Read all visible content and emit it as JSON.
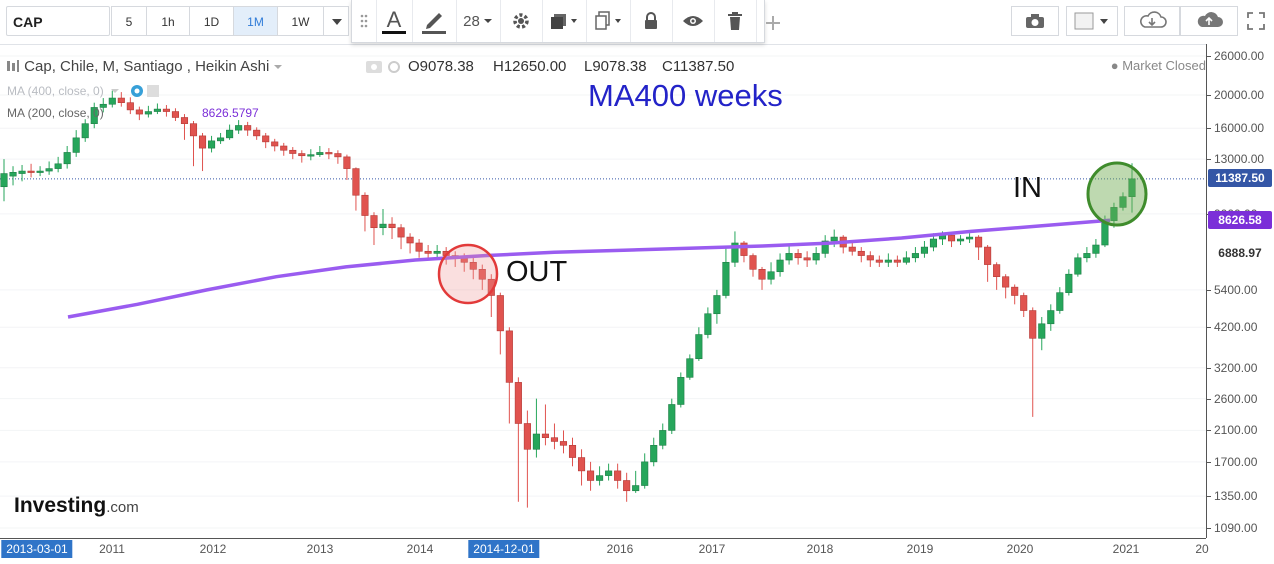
{
  "toolbar": {
    "symbol": "CAP",
    "timeframes": [
      "5",
      "1h",
      "1D",
      "1M",
      "1W"
    ],
    "active_timeframe": "1M",
    "font_size": "28"
  },
  "legend": {
    "title": "Cap, Chile, M, Santiago , Heikin Ashi",
    "open": "O9078.38",
    "high": "H12650.00",
    "low": "L9078.38",
    "close": "C11387.50",
    "ma400": "MA (400, close, 0)",
    "ma200": "MA (200, close, 0)",
    "ma200_value": "8626.5797",
    "market_status": "Market Closed"
  },
  "annotations": {
    "ma_title": "MA400 weeks",
    "out_label": "OUT",
    "in_label": "IN"
  },
  "yaxis": {
    "labels": [
      "26000.00",
      "20000.00",
      "16000.00",
      "13000.00",
      "9000.00",
      "5400.00",
      "4200.00",
      "3200.00",
      "2600.00",
      "2100.00",
      "1700.00",
      "1350.00",
      "1090.00"
    ],
    "tags": [
      "11387.50",
      "8626.58",
      "6888.97"
    ]
  },
  "xaxis": {
    "labels": [
      "2011",
      "2012",
      "2013",
      "2014",
      "2016",
      "2017",
      "2018",
      "2019",
      "2020",
      "2021",
      "20"
    ],
    "highlights": [
      "2013-03-01",
      "2014-12-01"
    ]
  },
  "brand": {
    "name": "Investing",
    "suffix": ".com"
  },
  "colors": {
    "up": "#26a65b",
    "down": "#e0534f",
    "ma": "#9a5cf0",
    "accent": "#2f74c8"
  },
  "chart_data": {
    "type": "candlestick",
    "title": "Cap, Chile, M, Santiago , Heikin Ashi",
    "y_scale": "log",
    "ylim": [
      1090,
      26000
    ],
    "x_ticks": [
      "2011",
      "2012",
      "2013",
      "2014",
      "2016",
      "2017",
      "2018",
      "2019",
      "2020",
      "2021"
    ],
    "series_name": "Cap",
    "candles": [
      [
        10800,
        11800,
        13000,
        9800
      ],
      [
        11600,
        11900,
        12400,
        10900
      ],
      [
        11800,
        12000,
        12500,
        11200
      ],
      [
        12000,
        11900,
        12600,
        11500
      ],
      [
        11900,
        12000,
        12400,
        11600
      ],
      [
        12000,
        12200,
        12800,
        11700
      ],
      [
        12200,
        12600,
        13200,
        11900
      ],
      [
        12600,
        13600,
        14200,
        12200
      ],
      [
        13600,
        15000,
        15800,
        13200
      ],
      [
        15000,
        16500,
        17000,
        14600
      ],
      [
        16500,
        18400,
        19000,
        16000
      ],
      [
        18400,
        18800,
        19600,
        17800
      ],
      [
        18800,
        19600,
        20600,
        18400
      ],
      [
        19600,
        19000,
        20400,
        18500
      ],
      [
        19000,
        18100,
        19700,
        17600
      ],
      [
        18100,
        17600,
        18500,
        16900
      ],
      [
        17600,
        17900,
        18600,
        17200
      ],
      [
        17900,
        18200,
        18900,
        17600
      ],
      [
        18200,
        17900,
        18700,
        17300
      ],
      [
        17900,
        17200,
        18300,
        16800
      ],
      [
        17200,
        16500,
        17600,
        14800
      ],
      [
        16500,
        15200,
        16800,
        12400
      ],
      [
        15200,
        14000,
        15500,
        12000
      ],
      [
        14000,
        14700,
        15200,
        13600
      ],
      [
        14700,
        15000,
        15500,
        14400
      ],
      [
        15000,
        15800,
        16400,
        14800
      ],
      [
        15800,
        16300,
        16900,
        15400
      ],
      [
        16300,
        15800,
        16700,
        15200
      ],
      [
        15800,
        15200,
        16100,
        14800
      ],
      [
        15200,
        14600,
        15500,
        14000
      ],
      [
        14600,
        14200,
        14900,
        13700
      ],
      [
        14200,
        13800,
        14500,
        13300
      ],
      [
        13800,
        13500,
        14100,
        13000
      ],
      [
        13500,
        13300,
        13800,
        12700
      ],
      [
        13300,
        13400,
        13900,
        12900
      ],
      [
        13400,
        13600,
        14200,
        13200
      ],
      [
        13600,
        13500,
        14000,
        13000
      ],
      [
        13500,
        13200,
        13800,
        12600
      ],
      [
        13200,
        12200,
        13400,
        11300
      ],
      [
        12200,
        10200,
        12300,
        9200
      ],
      [
        10200,
        8900,
        10400,
        8000
      ],
      [
        8900,
        8200,
        9100,
        7300
      ],
      [
        8200,
        8400,
        9300,
        7800
      ],
      [
        8400,
        8200,
        8800,
        7600
      ],
      [
        8200,
        7700,
        8400,
        7100
      ],
      [
        7700,
        7400,
        7900,
        6900
      ],
      [
        7400,
        7000,
        7600,
        6700
      ],
      [
        7000,
        6900,
        7300,
        6600
      ],
      [
        6900,
        7000,
        7300,
        6700
      ],
      [
        7000,
        6800,
        7200,
        6400
      ],
      [
        6800,
        6700,
        7000,
        6300
      ],
      [
        6700,
        6500,
        6900,
        6100
      ],
      [
        6500,
        6200,
        6700,
        5800
      ],
      [
        6200,
        5800,
        6400,
        5400
      ],
      [
        5800,
        5200,
        6000,
        4500
      ],
      [
        5200,
        4100,
        5300,
        3500
      ],
      [
        4100,
        2900,
        4200,
        2200
      ],
      [
        2900,
        2200,
        3000,
        1300
      ],
      [
        2200,
        1850,
        2400,
        1250
      ],
      [
        1850,
        2050,
        2600,
        1750
      ],
      [
        2050,
        2000,
        2500,
        1900
      ],
      [
        2000,
        1950,
        2200,
        1850
      ],
      [
        1950,
        1900,
        2100,
        1800
      ],
      [
        1900,
        1750,
        2000,
        1650
      ],
      [
        1750,
        1600,
        1850,
        1450
      ],
      [
        1600,
        1500,
        1700,
        1400
      ],
      [
        1500,
        1550,
        1650,
        1450
      ],
      [
        1550,
        1600,
        1680,
        1500
      ],
      [
        1600,
        1500,
        1680,
        1420
      ],
      [
        1500,
        1400,
        1580,
        1300
      ],
      [
        1400,
        1450,
        1600,
        1380
      ],
      [
        1450,
        1700,
        1800,
        1420
      ],
      [
        1700,
        1900,
        2000,
        1650
      ],
      [
        1900,
        2100,
        2200,
        1850
      ],
      [
        2100,
        2500,
        2600,
        2050
      ],
      [
        2500,
        3000,
        3100,
        2450
      ],
      [
        3000,
        3400,
        3500,
        2950
      ],
      [
        3400,
        4000,
        4200,
        3350
      ],
      [
        4000,
        4600,
        4800,
        3900
      ],
      [
        4600,
        5200,
        5400,
        4300
      ],
      [
        5200,
        6500,
        7200,
        5100
      ],
      [
        6500,
        7400,
        8000,
        6300
      ],
      [
        7400,
        6800,
        7500,
        6500
      ],
      [
        6800,
        6200,
        6900,
        5900
      ],
      [
        6200,
        5800,
        6300,
        5400
      ],
      [
        5800,
        6100,
        6500,
        5600
      ],
      [
        6100,
        6600,
        6900,
        5900
      ],
      [
        6600,
        6900,
        7300,
        6400
      ],
      [
        6900,
        6700,
        7100,
        6400
      ],
      [
        6700,
        6600,
        7000,
        6300
      ],
      [
        6600,
        6900,
        7200,
        6400
      ],
      [
        6900,
        7500,
        7800,
        6700
      ],
      [
        7500,
        7700,
        8100,
        7200
      ],
      [
        7700,
        7200,
        7800,
        6900
      ],
      [
        7200,
        7000,
        7400,
        6800
      ],
      [
        7000,
        6800,
        7200,
        6500
      ],
      [
        6800,
        6600,
        7000,
        6300
      ],
      [
        6600,
        6500,
        6800,
        6300
      ],
      [
        6500,
        6600,
        6900,
        6300
      ],
      [
        6600,
        6500,
        6800,
        6300
      ],
      [
        6500,
        6700,
        7000,
        6400
      ],
      [
        6700,
        6900,
        7200,
        6500
      ],
      [
        6900,
        7200,
        7500,
        6700
      ],
      [
        7200,
        7600,
        7900,
        7000
      ],
      [
        7600,
        7800,
        8000,
        7300
      ],
      [
        7800,
        7500,
        7900,
        7200
      ],
      [
        7500,
        7600,
        7800,
        7300
      ],
      [
        7600,
        7700,
        7900,
        7400
      ],
      [
        7700,
        7200,
        7800,
        6600
      ],
      [
        7200,
        6400,
        7300,
        5700
      ],
      [
        6400,
        5900,
        6500,
        5400
      ],
      [
        5900,
        5500,
        6000,
        5100
      ],
      [
        5500,
        5200,
        5600,
        4900
      ],
      [
        5200,
        4700,
        5300,
        4500
      ],
      [
        4700,
        3900,
        4800,
        2300
      ],
      [
        3900,
        4300,
        4500,
        3600
      ],
      [
        4300,
        4700,
        4900,
        4100
      ],
      [
        4700,
        5300,
        5500,
        4600
      ],
      [
        5300,
        6000,
        6200,
        5200
      ],
      [
        6000,
        6700,
        6900,
        5900
      ],
      [
        6700,
        6900,
        7200,
        6500
      ],
      [
        6900,
        7300,
        7600,
        6700
      ],
      [
        7300,
        8600,
        8900,
        7200
      ],
      [
        8600,
        9400,
        9700,
        8200
      ],
      [
        9400,
        10100,
        10400,
        9200
      ],
      [
        10100,
        11387.5,
        12650,
        9078.38
      ]
    ],
    "ma400": [
      4500,
      4900,
      5400,
      5900,
      6300,
      6600,
      6800,
      6950,
      7050,
      7150,
      7250,
      7400,
      7650,
      8000,
      8300,
      8626.58
    ],
    "ma_label": "MA (200, close, 0)",
    "last_close": 11387.5,
    "ma200_value": 8626.58,
    "marked_level": 6888.97
  }
}
